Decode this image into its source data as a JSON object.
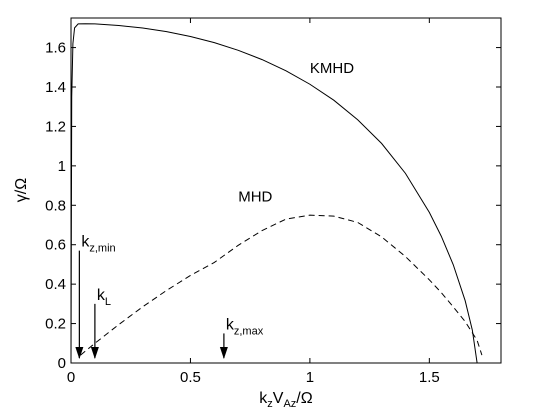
{
  "chart_data": {
    "type": "line",
    "xlabel": {
      "main": "k",
      "sub1": "z",
      "mid": "V",
      "sub2": "Az",
      "tail": "/Ω"
    },
    "ylabel": "γ/Ω",
    "xlim": [
      0,
      1.8
    ],
    "ylim": [
      0,
      1.75
    ],
    "xticks": [
      0,
      0.5,
      1,
      1.5
    ],
    "xtick_labels": [
      "0",
      "0.5",
      "1",
      "1.5"
    ],
    "yticks": [
      0,
      0.2,
      0.4,
      0.6,
      0.8,
      1,
      1.2,
      1.4,
      1.6
    ],
    "ytick_labels": [
      "0",
      "0.2",
      "0.4",
      "0.6",
      "0.8",
      "1",
      "1.2",
      "1.4",
      "1.6"
    ],
    "grid": false,
    "series": [
      {
        "name": "KMHD",
        "style": "solid",
        "color": "#000000",
        "x": [
          0,
          0.003,
          0.008,
          0.015,
          0.03,
          0.06,
          0.1,
          0.2,
          0.3,
          0.4,
          0.5,
          0.6,
          0.7,
          0.8,
          0.9,
          1.0,
          1.1,
          1.2,
          1.3,
          1.4,
          1.5,
          1.55,
          1.6,
          1.65,
          1.68,
          1.7,
          1.715,
          1.725,
          1.732
        ],
        "y": [
          0,
          1.35,
          1.62,
          1.7,
          1.72,
          1.721,
          1.72,
          1.712,
          1.699,
          1.681,
          1.656,
          1.625,
          1.586,
          1.539,
          1.482,
          1.414,
          1.333,
          1.234,
          1.114,
          0.962,
          0.764,
          0.643,
          0.499,
          0.316,
          0.167,
          0.0,
          0.0,
          0.0,
          0.0
        ]
      },
      {
        "name": "MHD",
        "style": "dashed",
        "color": "#000000",
        "x": [
          0.04,
          0.1,
          0.2,
          0.3,
          0.4,
          0.5,
          0.6,
          0.7,
          0.8,
          0.9,
          1.0,
          1.1,
          1.2,
          1.3,
          1.4,
          1.5,
          1.55,
          1.6,
          1.65,
          1.7,
          1.72
        ],
        "y": [
          0.04,
          0.1,
          0.195,
          0.285,
          0.368,
          0.444,
          0.51,
          0.597,
          0.672,
          0.73,
          0.75,
          0.745,
          0.713,
          0.64,
          0.54,
          0.422,
          0.357,
          0.285,
          0.21,
          0.115,
          0.04
        ]
      }
    ],
    "series_labels": [
      {
        "text": "KMHD",
        "x": 1.0,
        "y": 1.47
      },
      {
        "text": "MHD",
        "x": 0.7,
        "y": 0.82
      }
    ],
    "annotations": [
      {
        "text": "k",
        "sub": "z,min",
        "x_data": 0.035,
        "arrow_from_y": 0.57,
        "arrow_to_y": 0.02
      },
      {
        "text": "k",
        "sub": "L",
        "x_data": 0.1,
        "arrow_from_y": 0.3,
        "arrow_to_y": 0.02
      },
      {
        "text": "k",
        "sub": "z,max",
        "x_data": 0.64,
        "arrow_from_y": 0.15,
        "arrow_to_y": 0.02
      }
    ]
  }
}
